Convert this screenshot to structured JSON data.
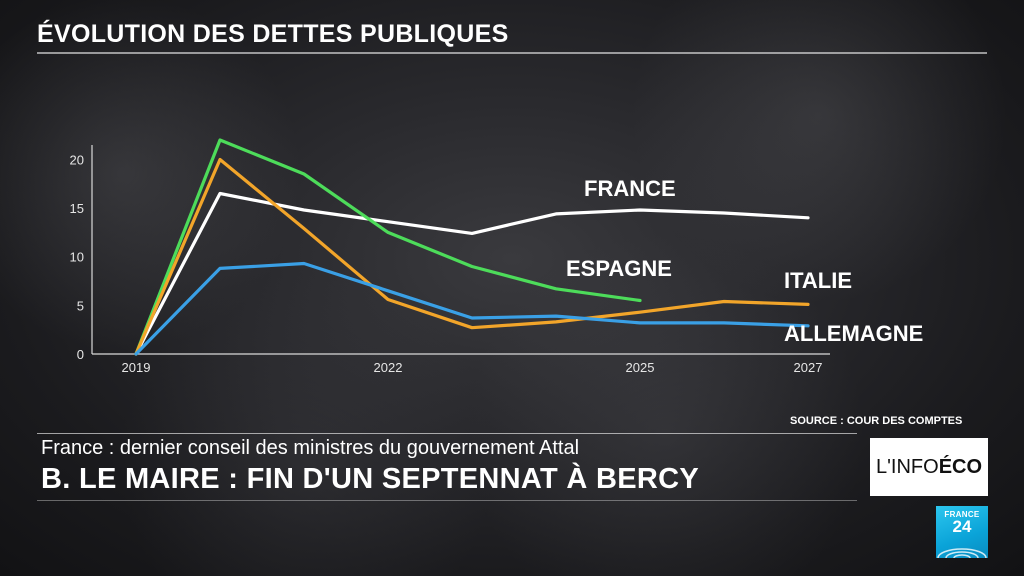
{
  "chart_data": {
    "type": "line",
    "title": "ÉVOLUTION DES DETTES PUBLIQUES",
    "xlabel": "",
    "ylabel": "",
    "x": [
      2019,
      2020,
      2021,
      2022,
      2023,
      2024,
      2025,
      2026,
      2027
    ],
    "xlim": [
      2019,
      2027
    ],
    "xticks": [
      "2019",
      "2022",
      "2025",
      "2027"
    ],
    "ylim": [
      0,
      22
    ],
    "yticks": [
      "0",
      "5",
      "10",
      "15",
      "20"
    ],
    "grid": false,
    "series": [
      {
        "name": "FRANCE",
        "color": "#ffffff",
        "values": [
          0,
          16.5,
          14.8,
          13.6,
          12.4,
          14.4,
          14.8,
          14.5,
          14.0
        ]
      },
      {
        "name": "ESPAGNE",
        "color": "#4ddc5a",
        "values": [
          0,
          22,
          18.5,
          12.5,
          9.0,
          6.7,
          5.5,
          null,
          null
        ]
      },
      {
        "name": "ITALIE",
        "color": "#f2a52a",
        "values": [
          0,
          20,
          12.9,
          5.6,
          2.7,
          3.3,
          4.3,
          5.4,
          5.1
        ]
      },
      {
        "name": "ALLEMAGNE",
        "color": "#3aa0e6",
        "values": [
          0,
          8.8,
          9.3,
          6.5,
          3.7,
          3.9,
          3.2,
          3.2,
          2.9
        ]
      }
    ]
  },
  "source": "SOURCE : COUR DES COMPTES",
  "lower_third": {
    "subtitle": "France : dernier conseil des ministres du gouvernement Attal",
    "headline": "B. LE MAIRE : FIN D'UN SEPTENNAT À BERCY"
  },
  "badge": {
    "prefix": "L'INFO ",
    "strong": "ÉCO"
  },
  "logo": {
    "line1": "FRANCE",
    "line2": "24",
    "color": "#1aaee0"
  }
}
